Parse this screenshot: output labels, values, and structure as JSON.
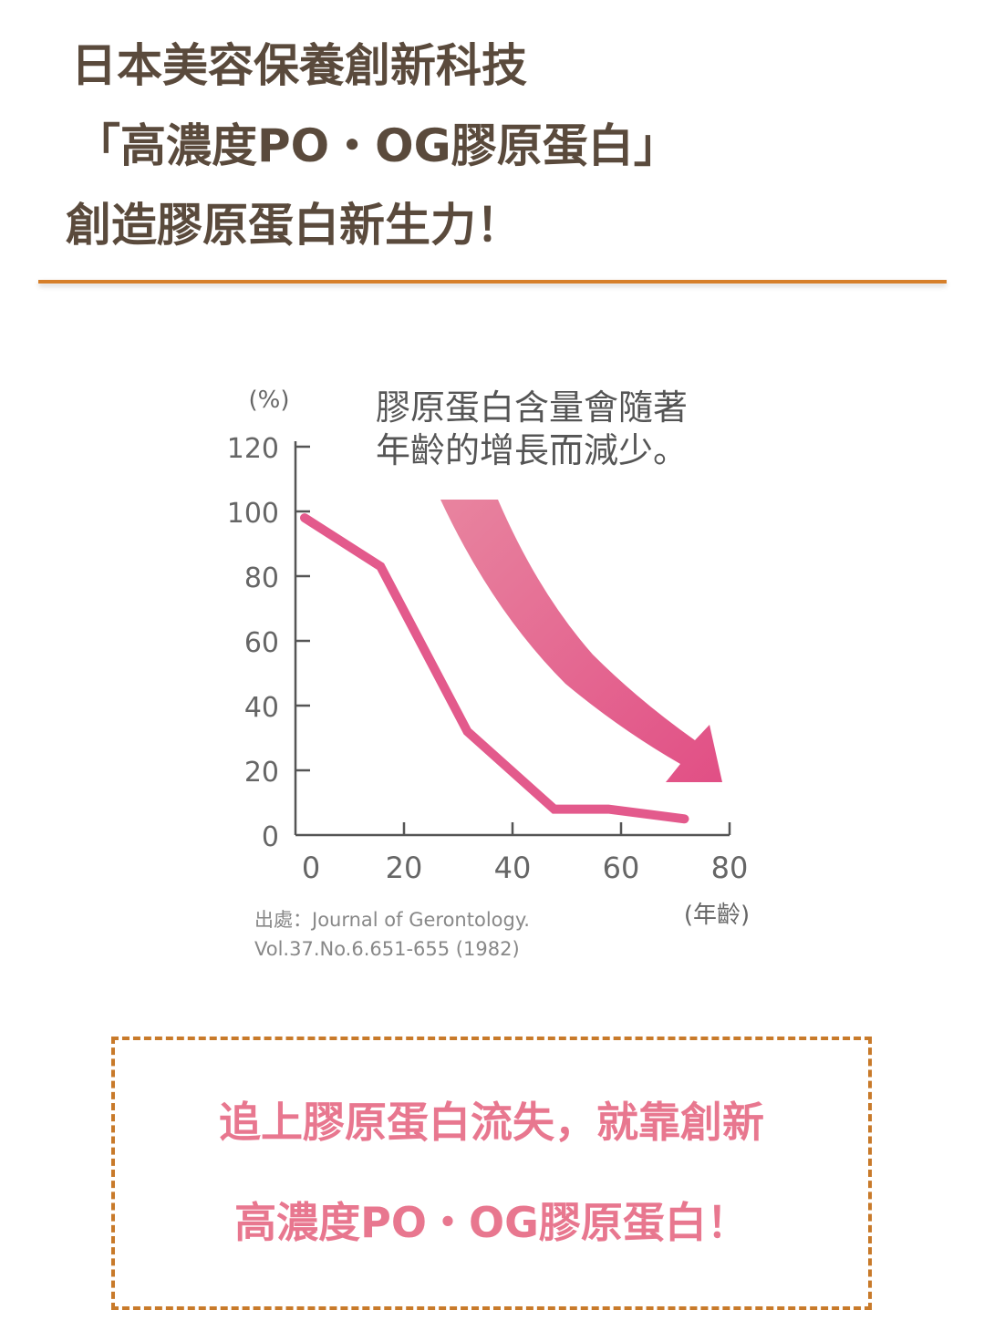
{
  "headline": {
    "line1": "日本美容保養創新科技",
    "line2": "「高濃度PO・OG膠原蛋白」",
    "line3": "創造膠原蛋白新生力！"
  },
  "colors": {
    "headline_text": "#5a4a3c",
    "divider": "#d67f2a",
    "series_line": "#e35a8c",
    "arrow": "#e14f85",
    "axis": "#555555",
    "callout_border": "#c87a2a",
    "callout_text": "#e8778f"
  },
  "chart_data": {
    "type": "line",
    "y_unit": "(%)",
    "x_unit": "(年齡)",
    "x_ticks": [
      0,
      20,
      40,
      60,
      80
    ],
    "y_ticks": [
      0,
      20,
      40,
      60,
      80,
      100,
      120
    ],
    "xlim": [
      0,
      80
    ],
    "ylim": [
      0,
      120
    ],
    "grid": false,
    "series": [
      {
        "x": [
          0,
          14,
          30,
          46,
          56,
          70
        ],
        "y": [
          98,
          83,
          32,
          8,
          8,
          5
        ]
      }
    ],
    "annotation": {
      "line1": "膠原蛋白含量會隨著",
      "line2": "年齡的增長而減少。",
      "arrow_direction": "down-right"
    },
    "source": {
      "line1": "出處：Journal of Gerontology.",
      "line2": "Vol.37.No.6.651-655 (1982)"
    }
  },
  "callout": {
    "line1": "追上膠原蛋白流失，就靠創新",
    "line2": "高濃度PO・OG膠原蛋白！"
  }
}
